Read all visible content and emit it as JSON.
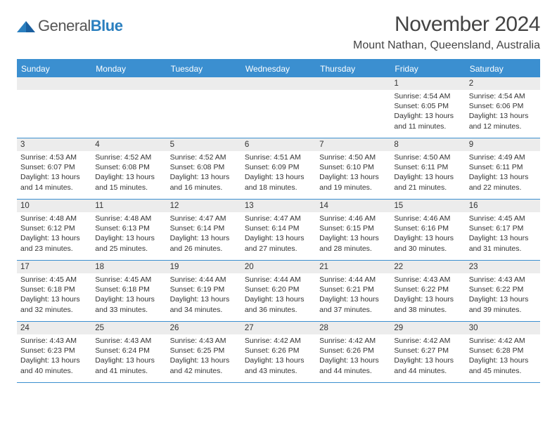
{
  "logo": {
    "text1": "General",
    "text2": "Blue"
  },
  "title": "November 2024",
  "location": "Mount Nathan, Queensland, Australia",
  "colors": {
    "header_bg": "#3b8fd0",
    "header_text": "#ffffff",
    "daynum_bg": "#ececec",
    "border": "#3b8fd0",
    "text": "#333333",
    "logo_gray": "#555555",
    "logo_blue": "#2a7fbf"
  },
  "day_headers": [
    "Sunday",
    "Monday",
    "Tuesday",
    "Wednesday",
    "Thursday",
    "Friday",
    "Saturday"
  ],
  "weeks": [
    [
      {
        "blank": true
      },
      {
        "blank": true
      },
      {
        "blank": true
      },
      {
        "blank": true
      },
      {
        "blank": true
      },
      {
        "n": "1",
        "sunrise": "Sunrise: 4:54 AM",
        "sunset": "Sunset: 6:05 PM",
        "daylight": "Daylight: 13 hours and 11 minutes."
      },
      {
        "n": "2",
        "sunrise": "Sunrise: 4:54 AM",
        "sunset": "Sunset: 6:06 PM",
        "daylight": "Daylight: 13 hours and 12 minutes."
      }
    ],
    [
      {
        "n": "3",
        "sunrise": "Sunrise: 4:53 AM",
        "sunset": "Sunset: 6:07 PM",
        "daylight": "Daylight: 13 hours and 14 minutes."
      },
      {
        "n": "4",
        "sunrise": "Sunrise: 4:52 AM",
        "sunset": "Sunset: 6:08 PM",
        "daylight": "Daylight: 13 hours and 15 minutes."
      },
      {
        "n": "5",
        "sunrise": "Sunrise: 4:52 AM",
        "sunset": "Sunset: 6:08 PM",
        "daylight": "Daylight: 13 hours and 16 minutes."
      },
      {
        "n": "6",
        "sunrise": "Sunrise: 4:51 AM",
        "sunset": "Sunset: 6:09 PM",
        "daylight": "Daylight: 13 hours and 18 minutes."
      },
      {
        "n": "7",
        "sunrise": "Sunrise: 4:50 AM",
        "sunset": "Sunset: 6:10 PM",
        "daylight": "Daylight: 13 hours and 19 minutes."
      },
      {
        "n": "8",
        "sunrise": "Sunrise: 4:50 AM",
        "sunset": "Sunset: 6:11 PM",
        "daylight": "Daylight: 13 hours and 21 minutes."
      },
      {
        "n": "9",
        "sunrise": "Sunrise: 4:49 AM",
        "sunset": "Sunset: 6:11 PM",
        "daylight": "Daylight: 13 hours and 22 minutes."
      }
    ],
    [
      {
        "n": "10",
        "sunrise": "Sunrise: 4:48 AM",
        "sunset": "Sunset: 6:12 PM",
        "daylight": "Daylight: 13 hours and 23 minutes."
      },
      {
        "n": "11",
        "sunrise": "Sunrise: 4:48 AM",
        "sunset": "Sunset: 6:13 PM",
        "daylight": "Daylight: 13 hours and 25 minutes."
      },
      {
        "n": "12",
        "sunrise": "Sunrise: 4:47 AM",
        "sunset": "Sunset: 6:14 PM",
        "daylight": "Daylight: 13 hours and 26 minutes."
      },
      {
        "n": "13",
        "sunrise": "Sunrise: 4:47 AM",
        "sunset": "Sunset: 6:14 PM",
        "daylight": "Daylight: 13 hours and 27 minutes."
      },
      {
        "n": "14",
        "sunrise": "Sunrise: 4:46 AM",
        "sunset": "Sunset: 6:15 PM",
        "daylight": "Daylight: 13 hours and 28 minutes."
      },
      {
        "n": "15",
        "sunrise": "Sunrise: 4:46 AM",
        "sunset": "Sunset: 6:16 PM",
        "daylight": "Daylight: 13 hours and 30 minutes."
      },
      {
        "n": "16",
        "sunrise": "Sunrise: 4:45 AM",
        "sunset": "Sunset: 6:17 PM",
        "daylight": "Daylight: 13 hours and 31 minutes."
      }
    ],
    [
      {
        "n": "17",
        "sunrise": "Sunrise: 4:45 AM",
        "sunset": "Sunset: 6:18 PM",
        "daylight": "Daylight: 13 hours and 32 minutes."
      },
      {
        "n": "18",
        "sunrise": "Sunrise: 4:45 AM",
        "sunset": "Sunset: 6:18 PM",
        "daylight": "Daylight: 13 hours and 33 minutes."
      },
      {
        "n": "19",
        "sunrise": "Sunrise: 4:44 AM",
        "sunset": "Sunset: 6:19 PM",
        "daylight": "Daylight: 13 hours and 34 minutes."
      },
      {
        "n": "20",
        "sunrise": "Sunrise: 4:44 AM",
        "sunset": "Sunset: 6:20 PM",
        "daylight": "Daylight: 13 hours and 36 minutes."
      },
      {
        "n": "21",
        "sunrise": "Sunrise: 4:44 AM",
        "sunset": "Sunset: 6:21 PM",
        "daylight": "Daylight: 13 hours and 37 minutes."
      },
      {
        "n": "22",
        "sunrise": "Sunrise: 4:43 AM",
        "sunset": "Sunset: 6:22 PM",
        "daylight": "Daylight: 13 hours and 38 minutes."
      },
      {
        "n": "23",
        "sunrise": "Sunrise: 4:43 AM",
        "sunset": "Sunset: 6:22 PM",
        "daylight": "Daylight: 13 hours and 39 minutes."
      }
    ],
    [
      {
        "n": "24",
        "sunrise": "Sunrise: 4:43 AM",
        "sunset": "Sunset: 6:23 PM",
        "daylight": "Daylight: 13 hours and 40 minutes."
      },
      {
        "n": "25",
        "sunrise": "Sunrise: 4:43 AM",
        "sunset": "Sunset: 6:24 PM",
        "daylight": "Daylight: 13 hours and 41 minutes."
      },
      {
        "n": "26",
        "sunrise": "Sunrise: 4:43 AM",
        "sunset": "Sunset: 6:25 PM",
        "daylight": "Daylight: 13 hours and 42 minutes."
      },
      {
        "n": "27",
        "sunrise": "Sunrise: 4:42 AM",
        "sunset": "Sunset: 6:26 PM",
        "daylight": "Daylight: 13 hours and 43 minutes."
      },
      {
        "n": "28",
        "sunrise": "Sunrise: 4:42 AM",
        "sunset": "Sunset: 6:26 PM",
        "daylight": "Daylight: 13 hours and 44 minutes."
      },
      {
        "n": "29",
        "sunrise": "Sunrise: 4:42 AM",
        "sunset": "Sunset: 6:27 PM",
        "daylight": "Daylight: 13 hours and 44 minutes."
      },
      {
        "n": "30",
        "sunrise": "Sunrise: 4:42 AM",
        "sunset": "Sunset: 6:28 PM",
        "daylight": "Daylight: 13 hours and 45 minutes."
      }
    ]
  ]
}
